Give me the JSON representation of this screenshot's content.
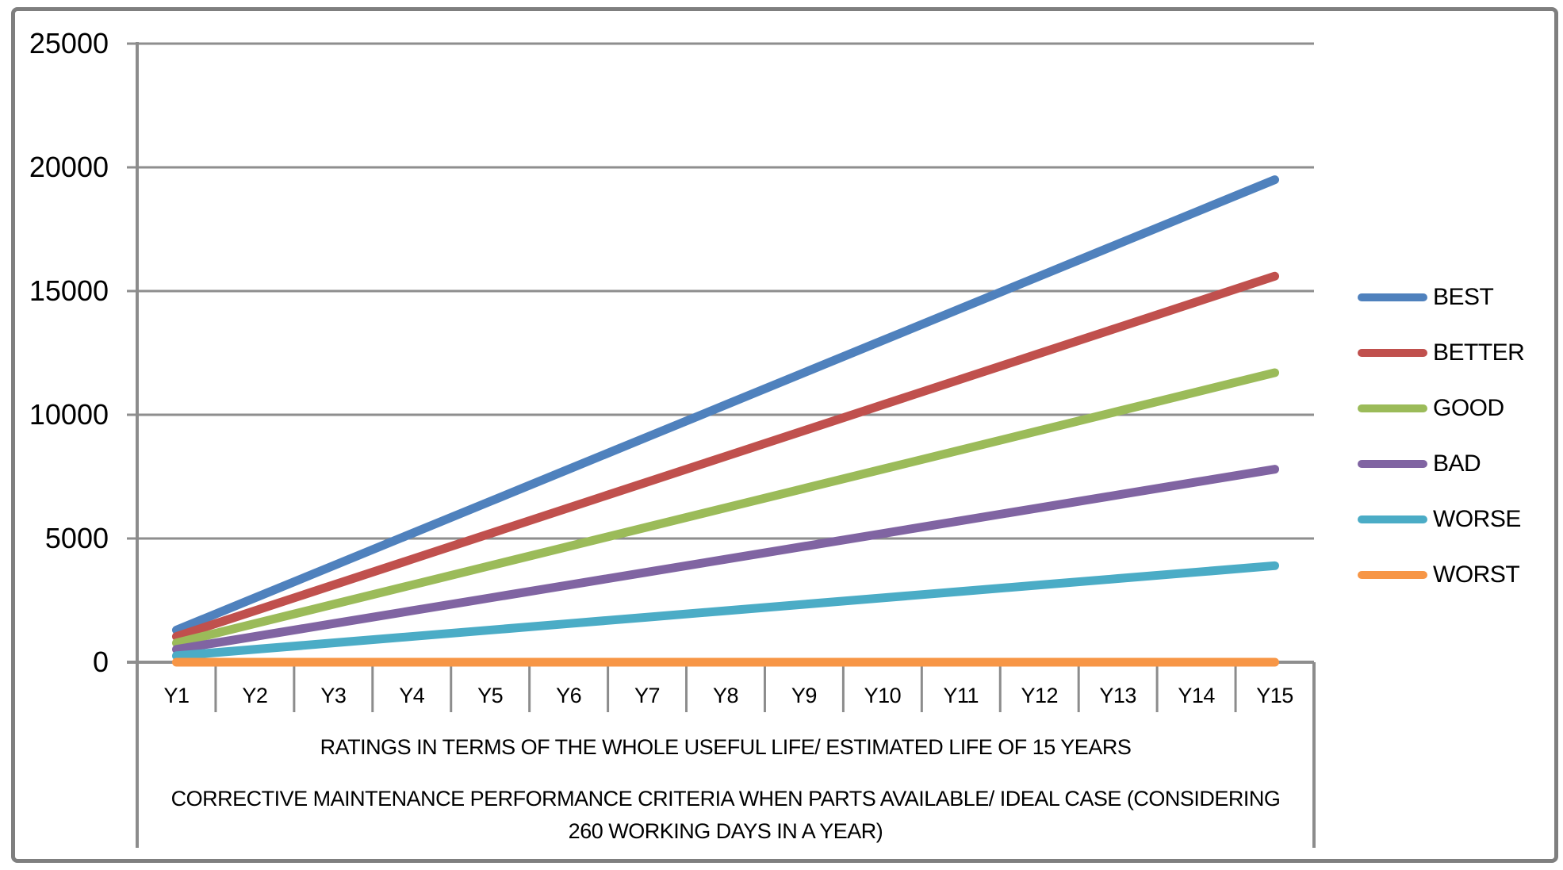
{
  "chart_data": {
    "type": "line",
    "title_lines": [
      "CORRECTIVE MAINTENANCE PERFORMANCE CRITERIA WHEN PARTS AVAILABLE/ IDEAL CASE (CONSIDERING",
      "260 WORKING DAYS IN A YEAR)"
    ],
    "xlabel": "RATINGS IN TERMS OF THE WHOLE USEFUL LIFE/ ESTIMATED LIFE OF 15 YEARS",
    "ylabel": "",
    "categories": [
      "Y1",
      "Y2",
      "Y3",
      "Y4",
      "Y5",
      "Y6",
      "Y7",
      "Y8",
      "Y9",
      "Y10",
      "Y11",
      "Y12",
      "Y13",
      "Y14",
      "Y15"
    ],
    "yticks": [
      0,
      5000,
      10000,
      15000,
      20000,
      25000
    ],
    "ylim": [
      0,
      25000
    ],
    "grid": true,
    "legend_position": "right",
    "colors": {
      "gridline": "#8E8E8E",
      "axis": "#8C8C8C",
      "border": "#7F7F7F",
      "text": "#000000"
    },
    "series": [
      {
        "name": "BEST",
        "color": "#4F81BD",
        "values": [
          1300,
          2600,
          3900,
          5200,
          6500,
          7800,
          9100,
          10400,
          11700,
          13000,
          14300,
          15600,
          16900,
          18200,
          19500
        ]
      },
      {
        "name": "BETTER",
        "color": "#C0504D",
        "values": [
          1040,
          2080,
          3120,
          4160,
          5200,
          6240,
          7280,
          8320,
          9360,
          10400,
          11440,
          12480,
          13520,
          14560,
          15600
        ]
      },
      {
        "name": "GOOD",
        "color": "#9BBB59",
        "values": [
          780,
          1560,
          2340,
          3120,
          3900,
          4680,
          5460,
          6240,
          7020,
          7800,
          8580,
          9360,
          10140,
          10920,
          11700
        ]
      },
      {
        "name": "BAD",
        "color": "#8064A2",
        "values": [
          520,
          1040,
          1560,
          2080,
          2600,
          3120,
          3640,
          4160,
          4680,
          5200,
          5720,
          6240,
          6760,
          7280,
          7800
        ]
      },
      {
        "name": "WORSE",
        "color": "#4BACC6",
        "values": [
          260,
          520,
          780,
          1040,
          1300,
          1560,
          1820,
          2080,
          2340,
          2600,
          2860,
          3120,
          3380,
          3640,
          3900
        ]
      },
      {
        "name": "WORST",
        "color": "#F79646",
        "values": [
          0,
          0,
          0,
          0,
          0,
          0,
          0,
          0,
          0,
          0,
          0,
          0,
          0,
          0,
          0
        ]
      }
    ]
  }
}
